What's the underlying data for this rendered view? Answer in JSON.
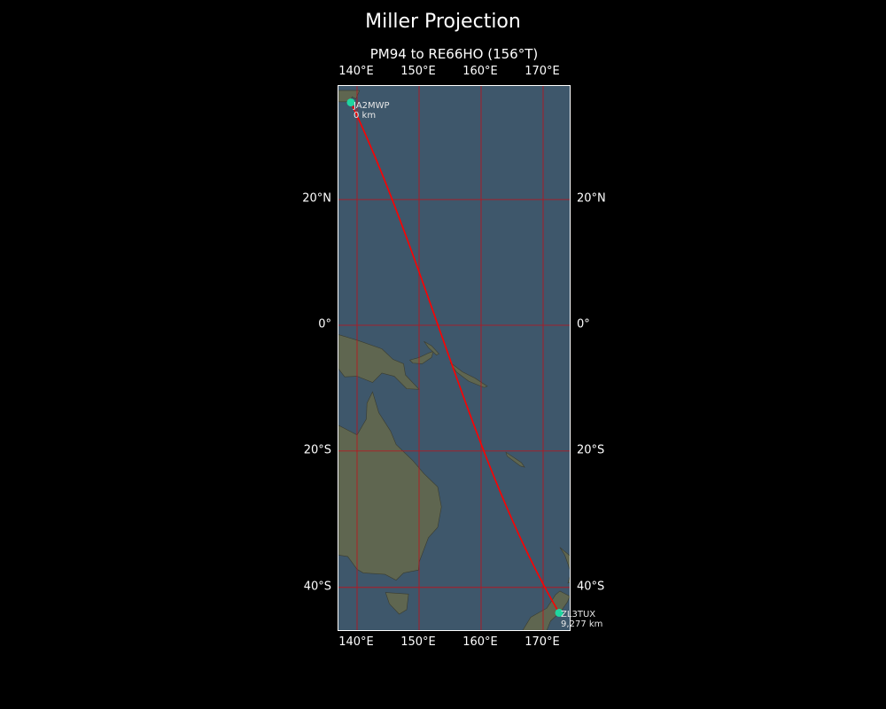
{
  "title": "Miller Projection",
  "subtitle": "PM94 to RE66HO (156°T)",
  "map": {
    "projection": "miller",
    "extent": {
      "lon": [
        137,
        174.6
      ],
      "lat": [
        -46.8,
        35.8
      ]
    },
    "lon_ticks": [
      {
        "value": 140,
        "label": "140°E"
      },
      {
        "value": 150,
        "label": "150°E"
      },
      {
        "value": 160,
        "label": "160°E"
      },
      {
        "value": 170,
        "label": "170°E"
      }
    ],
    "lat_ticks": [
      {
        "value": 20,
        "label": "20°N"
      },
      {
        "value": 0,
        "label": "0°"
      },
      {
        "value": -20,
        "label": "20°S"
      },
      {
        "value": -40,
        "label": "40°S"
      }
    ],
    "colors": {
      "ocean": "#3e576b",
      "land": "#5f6650",
      "grid": "#c0101a",
      "path": "#ff0000",
      "marker": "#1fd6a0"
    },
    "start": {
      "call": "JA2MWP",
      "distance": "0 km",
      "lon": 139.0,
      "lat": 34.5
    },
    "end": {
      "call": "ZL3TUX",
      "distance": "9,277 km",
      "lon": 172.58,
      "lat": -43.42
    }
  }
}
